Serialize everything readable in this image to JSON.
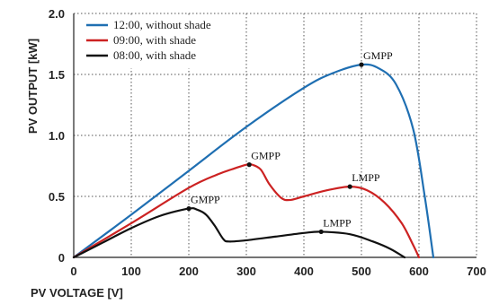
{
  "chart_data": {
    "type": "line",
    "title": "",
    "xlabel": "PV VOLTAGE [V]",
    "ylabel": "PV OUTPUT [kW]",
    "xlim": [
      0,
      700
    ],
    "ylim": [
      0,
      2.0
    ],
    "x_ticks": [
      "0",
      "100",
      "200",
      "300",
      "400",
      "500",
      "600",
      "700"
    ],
    "y_ticks": [
      "0",
      "0.5",
      "1.0",
      "1.5",
      "2.0"
    ],
    "grid": true,
    "legend_position": "top-left",
    "series": [
      {
        "name": "12:00, without shade",
        "color": "#1f6fb2",
        "x": [
          0,
          100,
          200,
          300,
          400,
          450,
          500,
          530,
          560,
          590,
          610,
          625
        ],
        "y": [
          0,
          0.35,
          0.71,
          1.07,
          1.39,
          1.51,
          1.58,
          1.55,
          1.42,
          1.05,
          0.5,
          0
        ]
      },
      {
        "name": "09:00, with shade",
        "color": "#cc2222",
        "x": [
          0,
          100,
          200,
          250,
          280,
          300,
          310,
          325,
          340,
          360,
          375,
          400,
          440,
          480,
          510,
          540,
          570,
          590,
          600
        ],
        "y": [
          0,
          0.28,
          0.57,
          0.68,
          0.73,
          0.76,
          0.76,
          0.72,
          0.6,
          0.49,
          0.47,
          0.5,
          0.55,
          0.58,
          0.55,
          0.45,
          0.28,
          0.1,
          0
        ]
      },
      {
        "name": "08:00, with shade",
        "color": "#111111",
        "x": [
          0,
          50,
          100,
          150,
          200,
          215,
          230,
          245,
          260,
          270,
          300,
          350,
          400,
          430,
          480,
          520,
          550,
          575
        ],
        "y": [
          0,
          0.12,
          0.24,
          0.34,
          0.4,
          0.39,
          0.35,
          0.26,
          0.15,
          0.13,
          0.14,
          0.17,
          0.2,
          0.21,
          0.19,
          0.13,
          0.07,
          0
        ]
      }
    ],
    "annotations": [
      {
        "text": "GMPP",
        "series": 0,
        "x": 500,
        "y": 1.58
      },
      {
        "text": "GMPP",
        "series": 1,
        "x": 305,
        "y": 0.76
      },
      {
        "text": "LMPP",
        "series": 1,
        "x": 480,
        "y": 0.58
      },
      {
        "text": "GMPP",
        "series": 2,
        "x": 200,
        "y": 0.4
      },
      {
        "text": "LMPP",
        "series": 2,
        "x": 430,
        "y": 0.21
      }
    ]
  }
}
